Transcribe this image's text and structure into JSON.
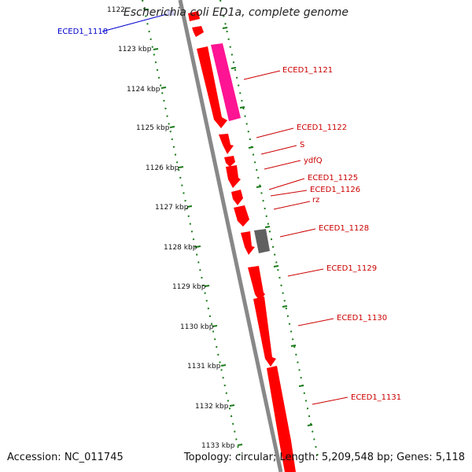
{
  "title": "Escherichia coli ED1a, complete genome",
  "accession": "Accession: NC_011745",
  "summary": "Topology: circular; Length: 5,209,548 bp; Genes: 5,118",
  "kbp_labels": [
    "1122",
    "1123 kbp",
    "1124 kbp",
    "1125 kbp",
    "1126 kbp",
    "1127 kbp",
    "1128 kbp",
    "1129 kbp",
    "1130 kbp",
    "1131 kbp",
    "1132 kbp",
    "1133 kbp"
  ],
  "gene_labels": {
    "eced1_1118": "ECED1_1118",
    "eced1_1121": "ECED1_1121",
    "eced1_1122": "ECED1_1122",
    "s": "S",
    "ydfq": "ydfQ",
    "eced1_1125": "ECED1_1125",
    "eced1_1126": "ECED1_1126",
    "rz": "rz",
    "eced1_1128": "ECED1_1128",
    "eced1_1129": "ECED1_1129",
    "eced1_1130": "ECED1_1130",
    "eced1_1131": "ECED1_1131"
  },
  "colors": {
    "backbone": "#888888",
    "gene": "#ff0000",
    "gene_highlight": "#ff1493",
    "gene_other": "#555555",
    "tick": "#1a7a1a",
    "label_red": "#cc0000",
    "label_blue": "#0000cc"
  }
}
